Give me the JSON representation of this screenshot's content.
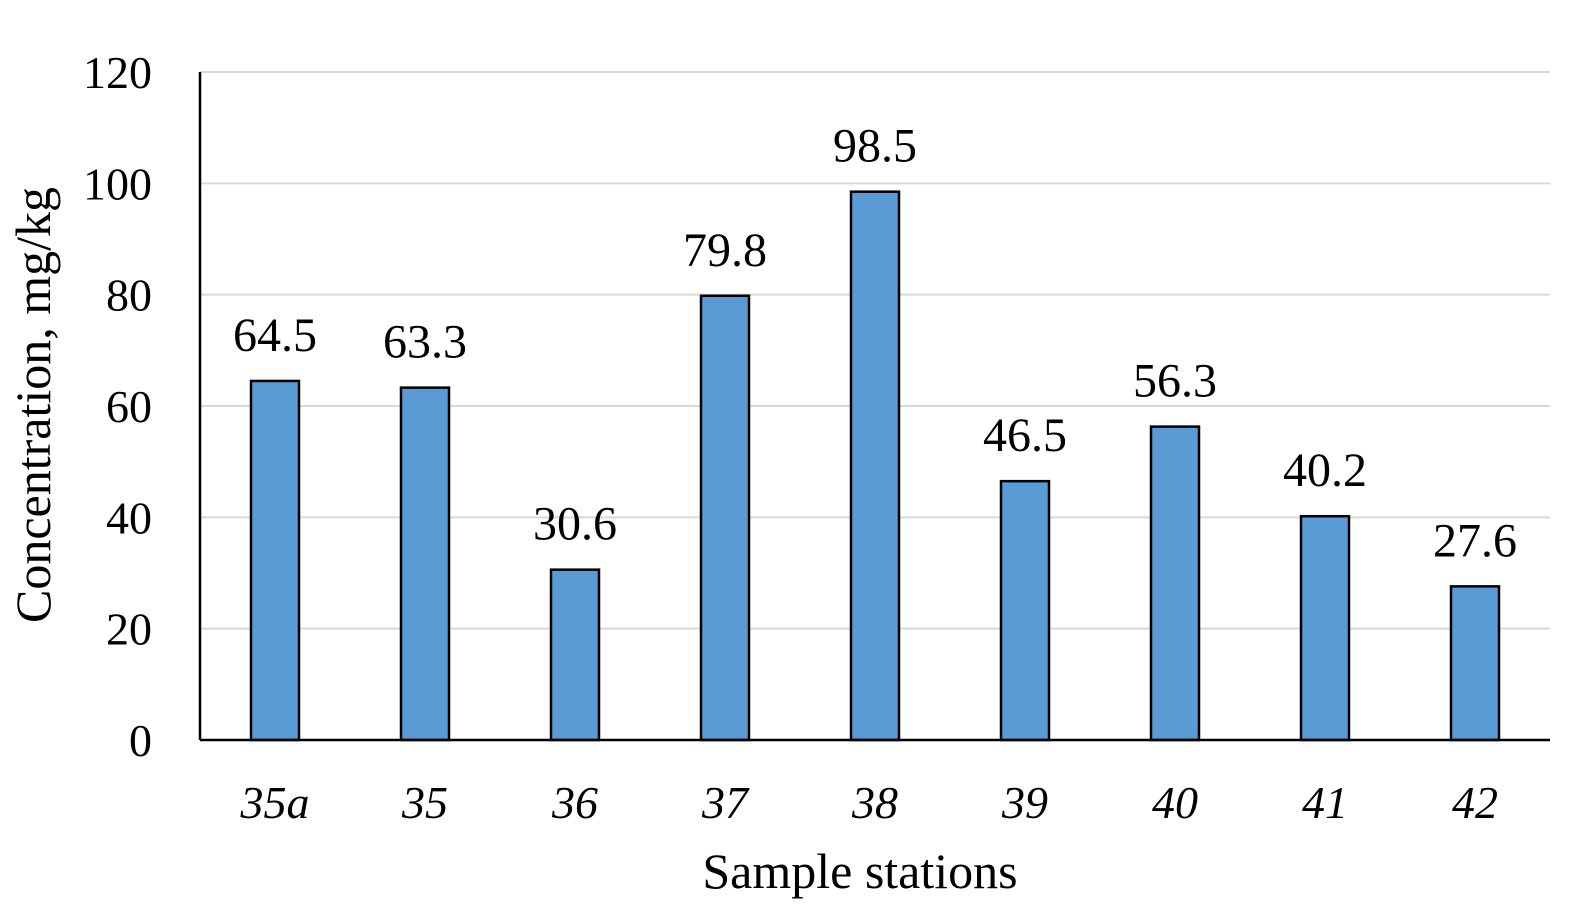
{
  "chart_data": {
    "type": "bar",
    "title": "",
    "xlabel": "Sample stations",
    "ylabel": "Concentration, mg/kg",
    "categories": [
      "35a",
      "35",
      "36",
      "37",
      "38",
      "39",
      "40",
      "41",
      "42"
    ],
    "values": [
      64.5,
      63.3,
      30.6,
      79.8,
      98.5,
      46.5,
      56.3,
      40.2,
      27.6
    ],
    "data_labels": [
      "64.5",
      "63.3",
      "30.6",
      "79.8",
      "98.5",
      "46.5",
      "56.3",
      "40.2",
      "27.6"
    ],
    "ylim": [
      0,
      120
    ],
    "yticks": [
      0,
      20,
      40,
      60,
      80,
      100,
      120
    ],
    "ytick_labels": [
      "0",
      "20",
      "40",
      "60",
      "80",
      "100",
      "120"
    ],
    "grid": true,
    "legend": "none",
    "colors": {
      "bar": "#5b9bd5",
      "bar_outline": "#000000",
      "grid": "#d9d9d9"
    }
  }
}
